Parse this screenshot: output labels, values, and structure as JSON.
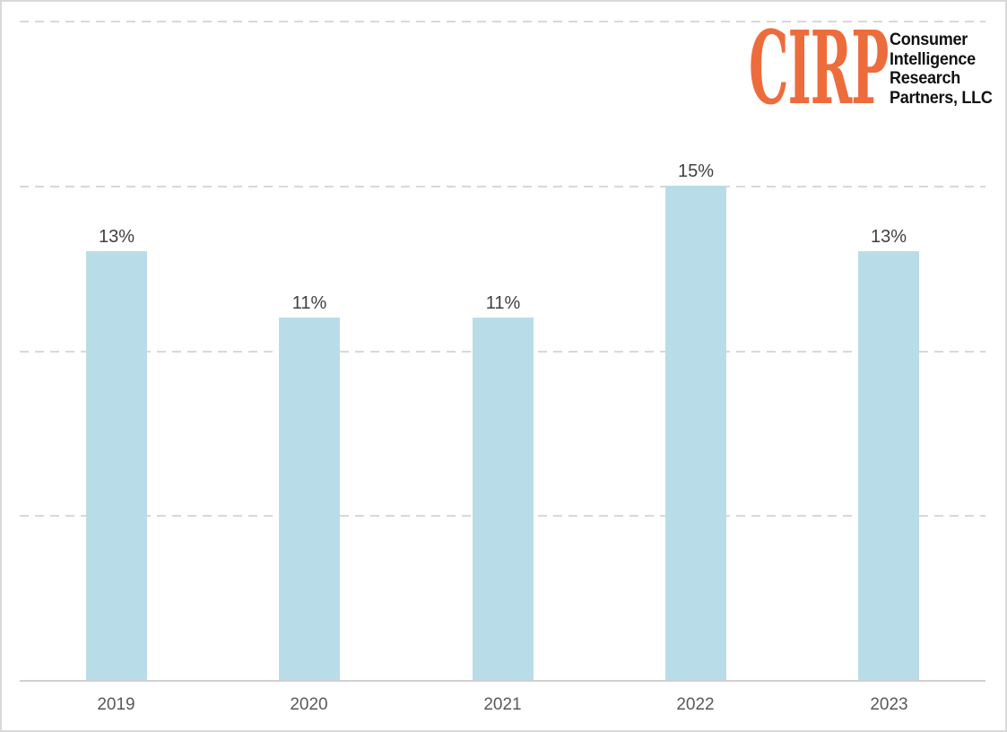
{
  "page": {
    "background": "#ffffff",
    "border_color": "#d9d9d9"
  },
  "logo": {
    "wordmark": "CIRP",
    "org_lines": [
      "Consumer",
      "Intelligence",
      "Research",
      "Partners, LLC"
    ],
    "wordmark_color": "#ed6c3c",
    "text_color": "#111111"
  },
  "chart_data": {
    "type": "bar",
    "categories": [
      "2019",
      "2020",
      "2021",
      "2022",
      "2023"
    ],
    "values": [
      13,
      11,
      11,
      15,
      13
    ],
    "data_labels": [
      "13%",
      "11%",
      "11%",
      "15%",
      "13%"
    ],
    "title": "",
    "xlabel": "",
    "ylabel": "",
    "ylim": [
      0,
      20
    ],
    "gridline_values": [
      5,
      10,
      15,
      20
    ],
    "grid_style": "dashed",
    "legend_position": "none",
    "bar_color": "#b9dde8",
    "data_label_color": "#404040",
    "tick_label_color": "#595959",
    "gridline_color": "#d8d8d8",
    "axis_line_color": "#d2cfcf"
  }
}
